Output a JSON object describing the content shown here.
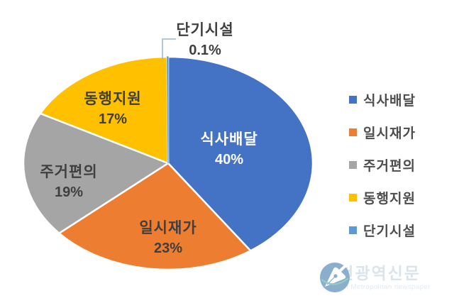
{
  "chart_data": {
    "type": "pie",
    "title": "",
    "direction": "clockwise",
    "start_angle_deg": 0,
    "legend_position": "right",
    "background": "#ffffff",
    "label_text_color": "#3f3f3f",
    "slices": [
      {
        "label": "식사배달",
        "value": 40,
        "pct_label": "40%",
        "color": "#4472C4",
        "label_color": "#ffffff"
      },
      {
        "label": "일시재가",
        "value": 23,
        "pct_label": "23%",
        "color": "#ED7D31",
        "label_color": "#3f3f3f"
      },
      {
        "label": "주거편의",
        "value": 19,
        "pct_label": "19%",
        "color": "#A5A5A5",
        "label_color": "#3f3f3f"
      },
      {
        "label": "동행지원",
        "value": 17,
        "pct_label": "17%",
        "color": "#FFC000",
        "label_color": "#3f3f3f"
      },
      {
        "label": "단기시설",
        "value": 0.1,
        "pct_label": "0.1%",
        "color": "#5B9BD5",
        "label_color": "#3f3f3f"
      }
    ]
  },
  "watermark": {
    "title": "인천광역신문",
    "subtitle": "Incheon Metropolitan newspaper"
  }
}
